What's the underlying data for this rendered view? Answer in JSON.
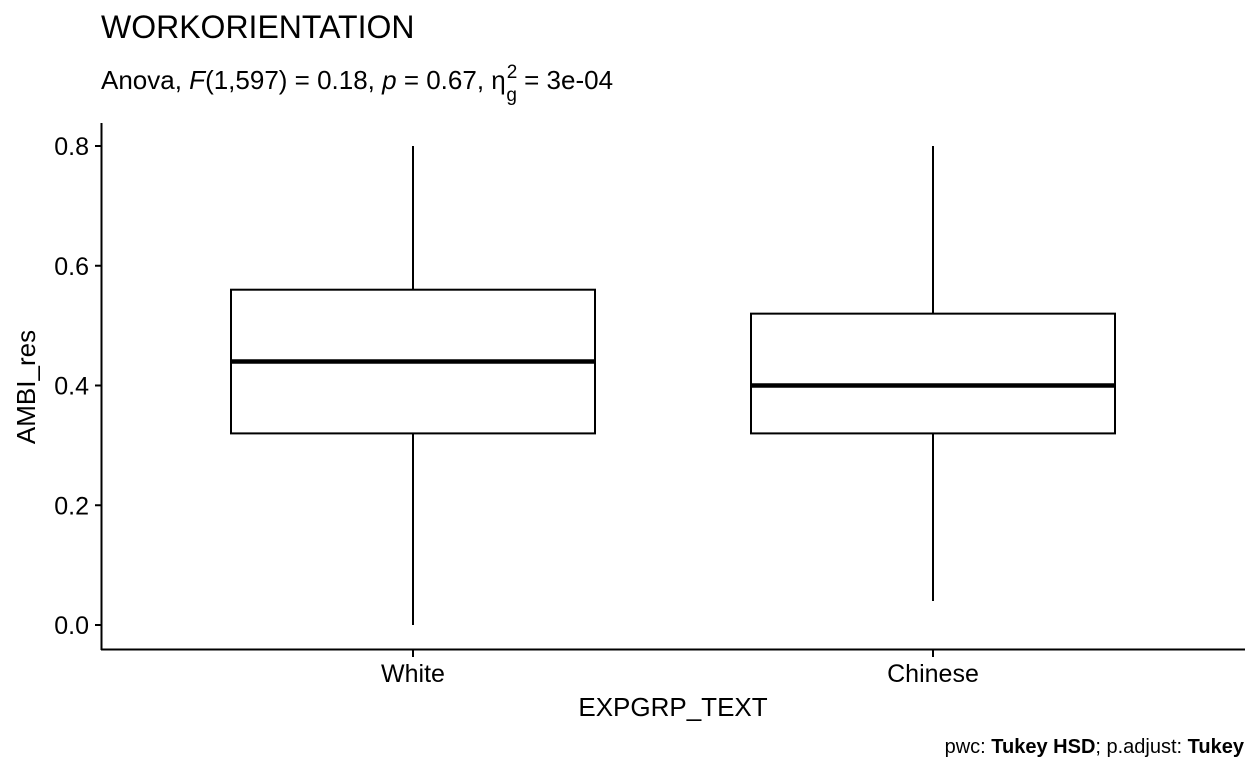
{
  "chart_data": {
    "type": "boxplot",
    "title": "WORKORIENTATION",
    "subtitle": {
      "prefix": "Anova, ",
      "stat_name": "F",
      "stat_args": "(1,597) = 0.18, ",
      "p_symbol": "p",
      "p_text": " = 0.67, ",
      "effect_symbol": "η",
      "effect_sub": "g",
      "effect_sup": "2",
      "effect_text": " = 3e-04"
    },
    "xlabel": "EXPGRP_TEXT",
    "ylabel": "AMBI_res",
    "ylim": [
      0.0,
      0.8
    ],
    "yticks": [
      {
        "value": 0.0,
        "label": "0.0"
      },
      {
        "value": 0.2,
        "label": "0.2"
      },
      {
        "value": 0.4,
        "label": "0.4"
      },
      {
        "value": 0.6,
        "label": "0.6"
      },
      {
        "value": 0.8,
        "label": "0.8"
      }
    ],
    "categories": [
      "White",
      "Chinese"
    ],
    "boxes": [
      {
        "category": "White",
        "min": 0.0,
        "q1": 0.32,
        "median": 0.44,
        "q3": 0.56,
        "max": 0.8
      },
      {
        "category": "Chinese",
        "min": 0.04,
        "q1": 0.32,
        "median": 0.4,
        "q3": 0.52,
        "max": 0.8
      }
    ],
    "caption": {
      "part1": "pwc: ",
      "part2": "Tukey HSD",
      "part3": "; p.adjust: ",
      "part4": "Tukey"
    },
    "grid": false,
    "legend": "none"
  }
}
